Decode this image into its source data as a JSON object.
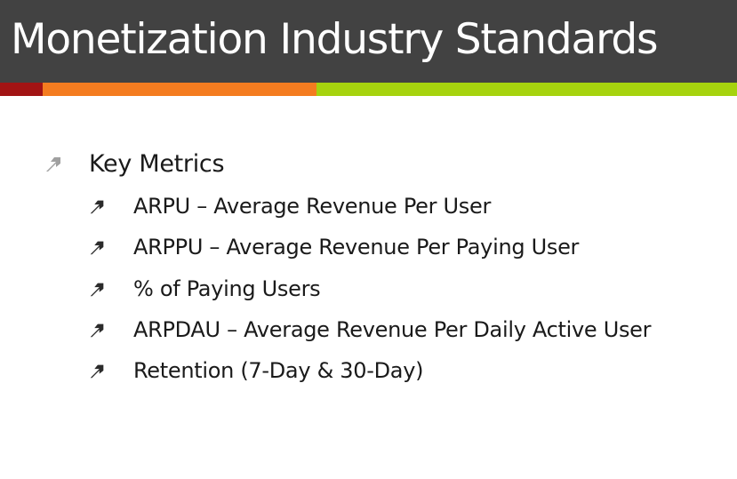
{
  "slide": {
    "title": "Monetization Industry Standards",
    "colors": {
      "title_bar": "#424242",
      "title_text": "#ffffff",
      "stripe_red": "#a21414",
      "stripe_orange": "#f47c20",
      "stripe_green": "#a6d30e",
      "arrow_level1": "#a0a0a0",
      "arrow_level2": "#2b2b2b",
      "text": "#1a1a1a"
    }
  },
  "bullets": {
    "main": {
      "icon": "arrow-up-right-icon",
      "label": "Key Metrics"
    },
    "sub": [
      {
        "icon": "arrow-up-right-icon",
        "label": "ARPU – Average Revenue Per User"
      },
      {
        "icon": "arrow-up-right-icon",
        "label": "ARPPU – Average Revenue Per Paying User"
      },
      {
        "icon": "arrow-up-right-icon",
        "label": "% of Paying Users"
      },
      {
        "icon": "arrow-up-right-icon",
        "label": "ARPDAU – Average Revenue Per Daily Active User"
      },
      {
        "icon": "arrow-up-right-icon",
        "label": "Retention (7-Day & 30-Day)"
      }
    ]
  }
}
